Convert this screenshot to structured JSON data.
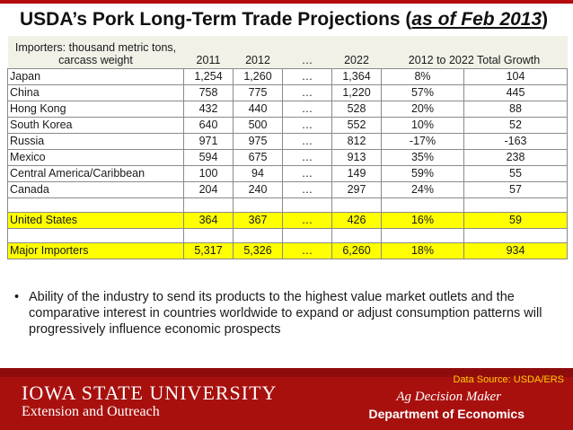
{
  "title": {
    "main": "USDA’s Pork Long-Term Trade Projections (",
    "emphasis": "as of Feb 2013",
    "close": ")"
  },
  "table": {
    "header": {
      "label": "Importers: thousand metric tons, carcass weight",
      "cols": [
        "2011",
        "2012",
        "…",
        "2022",
        "2012 to 2022 Total Growth"
      ]
    },
    "rows": [
      [
        "Japan",
        "1,254",
        "1,260",
        "…",
        "1,364",
        "8%",
        "104"
      ],
      [
        "China",
        "758",
        "775",
        "…",
        "1,220",
        "57%",
        "445"
      ],
      [
        "Hong Kong",
        "432",
        "440",
        "…",
        "528",
        "20%",
        "88"
      ],
      [
        "South Korea",
        "640",
        "500",
        "…",
        "552",
        "10%",
        "52"
      ],
      [
        "Russia",
        "971",
        "975",
        "…",
        "812",
        "-17%",
        "-163"
      ],
      [
        "Mexico",
        "594",
        "675",
        "…",
        "913",
        "35%",
        "238"
      ],
      [
        "Central America/Caribbean",
        "100",
        "94",
        "…",
        "149",
        "59%",
        "55"
      ],
      [
        "Canada",
        "204",
        "240",
        "…",
        "297",
        "24%",
        "57"
      ]
    ],
    "us": [
      "United States",
      "364",
      "367",
      "…",
      "426",
      "16%",
      "59"
    ],
    "major": [
      "Major Importers",
      "5,317",
      "5,326",
      "…",
      "6,260",
      "18%",
      "934"
    ],
    "highlight_color": "#ffff00"
  },
  "bullet": {
    "symbol": "•",
    "text": "Ability of the industry to send its products to the highest value market outlets and the comparative interest in countries worldwide to expand or adjust consumption patterns will progressively influence economic prospects"
  },
  "footer": {
    "source": "Data Source: USDA/ERS",
    "university": "IOWA STATE UNIVERSITY",
    "extension": "Extension and Outreach",
    "ag": "Ag Decision Maker",
    "department": "Department of Economics",
    "bg_color": "#a8100e"
  }
}
